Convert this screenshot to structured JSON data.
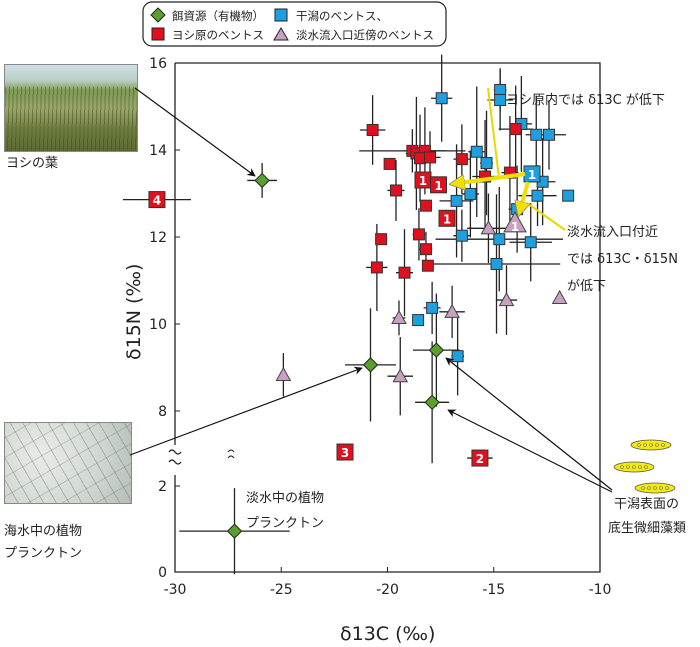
{
  "chart_data": {
    "type": "scatter",
    "xlabel": "δ13C (‰)",
    "ylabel": "δ15N (‰)",
    "xlim": [
      -30,
      -10
    ],
    "ylim_upper": [
      8,
      16
    ],
    "ylim_lower": [
      0,
      2
    ],
    "axis_break": "y between 2 and 8",
    "xticks": [
      "-30",
      "-25",
      "-20",
      "-15",
      "-10"
    ],
    "yticks_upper": [
      "16",
      "14",
      "12",
      "10",
      "8"
    ],
    "yticks_lower": [
      "2",
      "0"
    ],
    "legend": {
      "placement": "top",
      "entries": [
        "餌資源（有機物）",
        "干潟のベントス、",
        "ヨシ原のベントス",
        "淡水流入口近傍のベントス"
      ]
    },
    "series": [
      {
        "name": "餌資源（有機物）",
        "marker": "diamond",
        "color": "#5aa02c",
        "points": [
          [
            -25.9,
            13.3,
            0.7,
            0.4
          ],
          [
            -20.8,
            9.06,
            1.2,
            1.3
          ],
          [
            -17.7,
            9.4,
            1.1,
            1.3
          ],
          [
            -17.9,
            8.2,
            0.8,
            1.4
          ],
          [
            -27.2,
            0.95,
            2.6,
            1.0
          ]
        ]
      },
      {
        "name": "干潟のベントス、",
        "marker": "square",
        "color": "#1ea0e0",
        "points": [
          [
            -14.7,
            15.38,
            0.3,
            0.5
          ],
          [
            -14.7,
            15.15,
            0.6,
            0.7
          ],
          [
            -17.45,
            15.19,
            0.5,
            1.0
          ],
          [
            -13.7,
            14.6,
            0.5,
            1.1
          ],
          [
            -13.0,
            14.35,
            0.5,
            0.9
          ],
          [
            -12.4,
            14.35,
            0.8,
            0.8
          ],
          [
            -15.8,
            13.96,
            0.4,
            1.5
          ],
          [
            -15.34,
            13.7,
            0.3,
            1.2
          ],
          [
            -12.7,
            13.27,
            0.6,
            1.0
          ],
          [
            -12.94,
            12.95,
            0.9,
            0.7
          ],
          [
            -11.5,
            12.95,
            0,
            0
          ],
          [
            -16.1,
            12.99,
            0.4,
            1.0
          ],
          [
            -16.75,
            12.83,
            0.8,
            1.3
          ],
          [
            -13.9,
            12.64,
            0.4,
            1.0
          ],
          [
            -16.5,
            12.03,
            0.4,
            0.6
          ],
          [
            -14.74,
            11.95,
            3.0,
            1.2
          ],
          [
            -13.26,
            11.88,
            1.0,
            0.9
          ],
          [
            -14.87,
            11.38,
            3.0,
            1.6
          ],
          [
            -17.9,
            10.37,
            0.4,
            0.6
          ],
          [
            -18.56,
            10.09,
            0,
            0
          ],
          [
            -16.7,
            9.26,
            0.3,
            0.9
          ]
        ]
      },
      {
        "name": "ヨシ原のベントス",
        "marker": "square",
        "color": "#e0101e",
        "points": [
          [
            -20.7,
            14.46,
            0.6,
            0.8
          ],
          [
            -18.83,
            13.98,
            2.5,
            0.5
          ],
          [
            -18.64,
            13.92,
            0.5,
            1.3
          ],
          [
            -18.24,
            13.98,
            1.0,
            1.0
          ],
          [
            -18.47,
            13.81,
            0.3,
            1.0
          ],
          [
            -18.0,
            13.83,
            0.5,
            0.6
          ],
          [
            -19.9,
            13.68,
            0,
            0
          ],
          [
            -16.5,
            13.79,
            0.4,
            0.8
          ],
          [
            -15.41,
            13.39,
            0.6,
            1.3
          ],
          [
            -14.24,
            13.48,
            0.4,
            1.3
          ],
          [
            -13.97,
            14.48,
            0.8,
            1.0
          ],
          [
            -19.6,
            13.07,
            0.4,
            0.7
          ],
          [
            -18.52,
            12.06,
            0.3,
            0.6
          ],
          [
            -18.19,
            12.72,
            0,
            0
          ],
          [
            -18.19,
            11.72,
            0.3,
            0.4
          ],
          [
            -20.3,
            11.95,
            0,
            0
          ],
          [
            -20.5,
            11.3,
            0.5,
            1.0
          ],
          [
            -19.2,
            11.18,
            0.4,
            1.0
          ],
          [
            -18.1,
            11.34,
            0,
            0
          ]
        ]
      },
      {
        "name": "淡水流入口近傍のベントス",
        "marker": "triangle",
        "color": "#c8a0c0",
        "points": [
          [
            -15.25,
            12.2,
            1.0,
            0.8
          ],
          [
            -14.4,
            10.55,
            0.5,
            0.8
          ],
          [
            -11.9,
            10.6,
            0,
            0
          ],
          [
            -19.46,
            10.14,
            0.3,
            0.4
          ],
          [
            -16.96,
            10.28,
            0.6,
            0.6
          ],
          [
            -19.4,
            8.8,
            0.6,
            0.9
          ],
          [
            -24.9,
            8.83,
            0,
            0.5
          ]
        ]
      }
    ],
    "labeled_points": [
      {
        "label": "1",
        "marker": "square",
        "color": "#e0101e",
        "x": -18.33,
        "y": 13.31
      },
      {
        "label": "1",
        "marker": "square",
        "color": "#e0101e",
        "x": -17.6,
        "y": 13.2
      },
      {
        "label": "1",
        "marker": "square",
        "color": "#e0101e",
        "x": -17.2,
        "y": 12.43
      },
      {
        "label": "1",
        "marker": "square",
        "color": "#1ea0e0",
        "x": -13.2,
        "y": 13.45
      },
      {
        "label": "1",
        "marker": "triangle",
        "color": "#c8a0c0",
        "x": -14.0,
        "y": 12.32
      },
      {
        "label": "4",
        "marker": "square",
        "color": "#e0101e",
        "x": -30.85,
        "y": 12.86,
        "xerr": 1.6
      },
      {
        "label": "3",
        "marker": "square",
        "color": "#e0101e",
        "x": -22.0,
        "y": 2.79
      },
      {
        "label": "2",
        "marker": "square",
        "color": "#e0101e",
        "x": -15.65,
        "y": 2.65,
        "xerr": 0.6
      }
    ],
    "annotations": {
      "reed_leaf": "ヨシの葉",
      "marine_plankton_1": "海水中の植物",
      "marine_plankton_2": "プランクトン",
      "fresh_plankton_1": "淡水中の植物",
      "fresh_plankton_2": "プランクトン",
      "microalgae_1": "干潟表面の",
      "microalgae_2": "底生微細藻類",
      "reed_zone": "ヨシ原内では δ13C が低下",
      "inlet_1": "淡水流入口付近",
      "inlet_2": "では δ13C・δ15N",
      "inlet_3": "が低下"
    }
  }
}
